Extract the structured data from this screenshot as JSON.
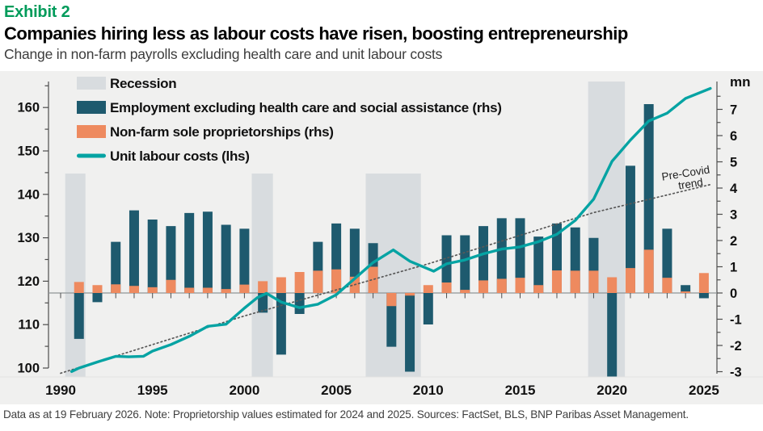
{
  "header": {
    "exhibit_label": "Exhibit 2",
    "title": "Companies hiring less as labour costs have risen, boosting entrepreneurship",
    "subtitle": "Change in non-farm payrolls excluding health care and unit labour costs"
  },
  "footer": {
    "note": "Data as at 19 February 2026. Note: Proprietorship values estimated for 2024 and 2025. Sources: FactSet, BLS, BNP Paribas Asset Management."
  },
  "chart_data": {
    "type": "combo",
    "legend": [
      {
        "label": "Recession",
        "swatch": "band"
      },
      {
        "label": "Employment excluding health care and social assistance  (rhs)",
        "swatch": "bar-navy"
      },
      {
        "label": "Non-farm sole proprietorships (rhs)",
        "swatch": "bar-orange"
      },
      {
        "label": "Unit labour costs (lhs)",
        "swatch": "line"
      }
    ],
    "left_axis": {
      "label_values": [
        160,
        150,
        140,
        130,
        120,
        110,
        100
      ],
      "min": 100,
      "max": 166,
      "minor_step": 5
    },
    "right_axis": {
      "unit": "mn",
      "label_values": [
        7,
        6,
        5,
        4,
        3,
        2,
        1,
        0,
        -1,
        -2,
        -3
      ],
      "min": -3,
      "max": 7.5,
      "minor_step": 0.5
    },
    "x_axis": {
      "labeled_years": [
        1990,
        1995,
        2000,
        2005,
        2010,
        2015,
        2020,
        2025
      ],
      "tick_start": 1990,
      "tick_end": 2025
    },
    "recession_bands": [
      [
        1990.25,
        1991.35
      ],
      [
        2000.4,
        2001.55
      ],
      [
        2006.6,
        2009.6
      ],
      [
        2018.7,
        2020.7
      ]
    ],
    "bars": {
      "years": [
        1991,
        1992,
        1993,
        1994,
        1995,
        1996,
        1997,
        1998,
        1999,
        2000,
        2001,
        2002,
        2003,
        2004,
        2005,
        2006,
        2007,
        2008,
        2009,
        2010,
        2011,
        2012,
        2013,
        2014,
        2015,
        2016,
        2017,
        2018,
        2019,
        2020,
        2021,
        2022,
        2023,
        2024,
        2025
      ],
      "employment_ex_health_rhs_mn": [
        -1.75,
        -0.35,
        1.95,
        3.15,
        2.8,
        2.55,
        3.05,
        3.1,
        2.6,
        2.45,
        -0.75,
        -2.35,
        -0.8,
        1.95,
        2.65,
        2.45,
        1.9,
        -2.05,
        -3.0,
        -1.2,
        2.2,
        2.2,
        2.55,
        2.85,
        2.85,
        2.15,
        2.65,
        2.5,
        2.1,
        -3.35,
        4.85,
        7.2,
        2.45,
        0.3,
        -0.2
      ],
      "sole_proprietorships_rhs_mn": [
        0.42,
        0.3,
        0.33,
        0.27,
        0.22,
        0.5,
        0.2,
        0.2,
        0.15,
        0.32,
        0.45,
        0.6,
        0.8,
        0.85,
        0.9,
        0.62,
        1.0,
        -0.5,
        -0.1,
        0.3,
        0.4,
        0.12,
        0.48,
        0.54,
        0.58,
        0.3,
        0.86,
        0.85,
        0.85,
        0.6,
        0.95,
        1.65,
        0.58,
        0.06,
        0.76
      ]
    },
    "unit_labour_costs_lhs": {
      "points": [
        [
          1990.6,
          99.2
        ],
        [
          1991,
          100
        ],
        [
          1992,
          101.4
        ],
        [
          1993,
          102.7
        ],
        [
          1993.7,
          102.6
        ],
        [
          1994.5,
          102.7
        ],
        [
          1995,
          103.9
        ],
        [
          1996,
          105.4
        ],
        [
          1997,
          107.3
        ],
        [
          1998,
          109.6
        ],
        [
          1999,
          110.1
        ],
        [
          2000,
          113.8
        ],
        [
          2000.7,
          116.2
        ],
        [
          2001.2,
          117.2
        ],
        [
          2002,
          115.2
        ],
        [
          2003,
          113.9
        ],
        [
          2004,
          114.7
        ],
        [
          2005,
          116.9
        ],
        [
          2006,
          120.6
        ],
        [
          2007,
          124.3
        ],
        [
          2008.1,
          127.2
        ],
        [
          2009,
          124.6
        ],
        [
          2010.3,
          122.3
        ],
        [
          2011,
          124
        ],
        [
          2012,
          124.9
        ],
        [
          2013,
          126.3
        ],
        [
          2014,
          127.4
        ],
        [
          2015,
          127.9
        ],
        [
          2016,
          129.1
        ],
        [
          2017,
          130.8
        ],
        [
          2018,
          134
        ],
        [
          2019,
          138.9
        ],
        [
          2020,
          147.6
        ],
        [
          2021,
          152.5
        ],
        [
          2022,
          156.9
        ],
        [
          2023,
          158.7
        ],
        [
          2024,
          162.1
        ],
        [
          2025.35,
          164.4
        ]
      ]
    },
    "pre_covid_trend": {
      "label_lines": [
        "Pre-Covid",
        "trend"
      ],
      "points": [
        [
          1990,
          98.8
        ],
        [
          2000,
          112
        ],
        [
          2010,
          124
        ],
        [
          2019,
          135.8
        ],
        [
          2025.4,
          142.3
        ]
      ]
    },
    "colors": {
      "employment_bar": "#1E5A6E",
      "proprietorship_bar": "#EE8A5F",
      "labour_cost_line": "#05A3A3",
      "recession_band": "#D8DCDF",
      "panel_bg": "#F0F0EF",
      "trend_dots": "#595959",
      "axis": "#4d4d4d",
      "zero_line": "#8f9598",
      "label_text": "#111111",
      "exhibit_green": "#009B5A"
    }
  }
}
